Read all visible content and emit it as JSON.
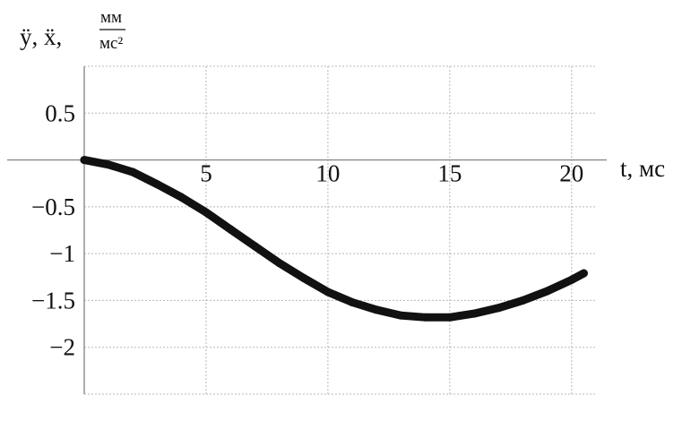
{
  "chart_data": {
    "type": "line",
    "ylabel": {
      "symbols": "ÿ, ẍ,",
      "unit_numerator": "мм",
      "unit_denominator": "мс²"
    },
    "xlabel": "t, мс",
    "xlim": [
      0,
      21
    ],
    "ylim": [
      -2.5,
      1.0
    ],
    "x_ticks": [
      {
        "value": 5,
        "label": "5"
      },
      {
        "value": 10,
        "label": "10"
      },
      {
        "value": 15,
        "label": "15"
      },
      {
        "value": 20,
        "label": "20"
      }
    ],
    "y_ticks": [
      {
        "value": 0.5,
        "label": "0.5"
      },
      {
        "value": -0.5,
        "label": "−0.5"
      },
      {
        "value": -1,
        "label": "−1"
      },
      {
        "value": -1.5,
        "label": "−1.5"
      },
      {
        "value": -2,
        "label": "−2"
      }
    ],
    "x_grid": [
      0,
      5,
      10,
      15,
      20
    ],
    "y_grid": [
      1.0,
      0.5,
      -0.5,
      -1,
      -1.5,
      -2,
      -2.5
    ],
    "grid": true,
    "series": [
      {
        "x": [
          0,
          1,
          2,
          3,
          4,
          5,
          6,
          7,
          8,
          9,
          10,
          11,
          12,
          13,
          14,
          15,
          16,
          17,
          18,
          19,
          20,
          20.5
        ],
        "y": [
          0.0,
          -0.05,
          -0.13,
          -0.26,
          -0.4,
          -0.56,
          -0.74,
          -0.92,
          -1.1,
          -1.26,
          -1.41,
          -1.52,
          -1.6,
          -1.66,
          -1.68,
          -1.68,
          -1.64,
          -1.58,
          -1.5,
          -1.4,
          -1.28,
          -1.21
        ]
      }
    ],
    "colors": {
      "line": "#111111",
      "grid": "#b8b8b8",
      "axis": "#8a8a8a"
    }
  }
}
